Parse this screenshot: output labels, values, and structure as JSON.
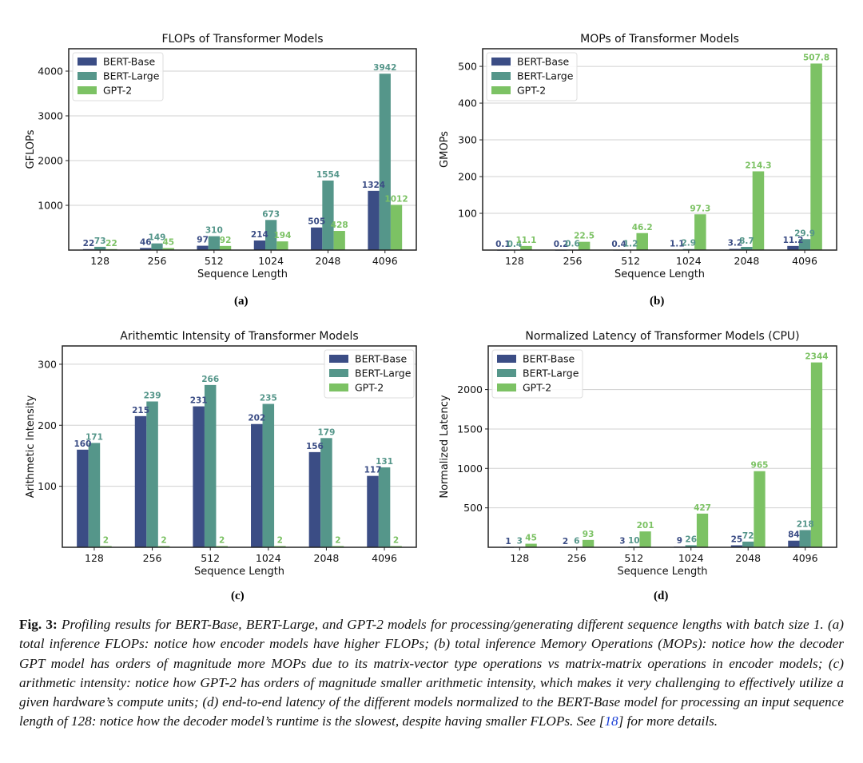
{
  "colors": {
    "BERT-Base": "#3b4d85",
    "BERT-Large": "#55968a",
    "GPT-2": "#7cc264",
    "grid": "#d0d0d0",
    "frame": "#222222"
  },
  "chart_data": [
    {
      "id": "a",
      "type": "bar",
      "title": "FLOPs of Transformer Models",
      "xlabel": "Sequence Length",
      "ylabel": "GFLOPs",
      "categories": [
        "128",
        "256",
        "512",
        "1024",
        "2048",
        "4096"
      ],
      "series": [
        {
          "name": "BERT-Base",
          "values": [
            22,
            46,
            97,
            214,
            505,
            1324
          ],
          "labels": [
            "22",
            "46",
            "97",
            "214",
            "505",
            "1324"
          ]
        },
        {
          "name": "BERT-Large",
          "values": [
            73,
            149,
            310,
            673,
            1554,
            3942
          ],
          "labels": [
            "73",
            "149",
            "310",
            "673",
            "1554",
            "3942"
          ]
        },
        {
          "name": "GPT-2",
          "values": [
            22,
            45,
            92,
            194,
            428,
            1012
          ],
          "labels": [
            "22",
            "45",
            "92",
            "194",
            "428",
            "1012"
          ]
        }
      ],
      "yticks": [
        1000,
        2000,
        3000,
        4000
      ],
      "ytick_labels": [
        "1000",
        "2000",
        "3000",
        "4000"
      ],
      "ylim": [
        0,
        4500
      ],
      "grid": true,
      "legend": "top-left",
      "sublabel": "(a)"
    },
    {
      "id": "b",
      "type": "bar",
      "title": "MOPs of Transformer Models",
      "xlabel": "Sequence Length",
      "ylabel": "GMOPs",
      "categories": [
        "128",
        "256",
        "512",
        "1024",
        "2048",
        "4096"
      ],
      "series": [
        {
          "name": "BERT-Base",
          "values": [
            0.1,
            0.2,
            0.4,
            1.1,
            3.2,
            11.2
          ],
          "labels": [
            "0.1",
            "0.2",
            "0.4",
            "1.1",
            "3.2",
            "11.2"
          ]
        },
        {
          "name": "BERT-Large",
          "values": [
            0.4,
            0.6,
            1.2,
            2.9,
            8.7,
            29.9
          ],
          "labels": [
            "0.4",
            "0.6",
            "1.2",
            "2.9",
            "8.7",
            "29.9"
          ]
        },
        {
          "name": "GPT-2",
          "values": [
            11.1,
            22.5,
            46.2,
            97.3,
            214.3,
            507.8
          ],
          "labels": [
            "11.1",
            "22.5",
            "46.2",
            "97.3",
            "214.3",
            "507.8"
          ]
        }
      ],
      "yticks": [
        100,
        200,
        300,
        400,
        500
      ],
      "ytick_labels": [
        "100",
        "200",
        "300",
        "400",
        "500"
      ],
      "ylim": [
        0,
        548
      ],
      "grid": true,
      "legend": "top-left",
      "sublabel": "(b)"
    },
    {
      "id": "c",
      "type": "bar",
      "title": "Arithemtic Intensity of Transformer Models",
      "xlabel": "Sequence Length",
      "ylabel": "Arithmetic Intensity",
      "categories": [
        "128",
        "256",
        "512",
        "1024",
        "2048",
        "4096"
      ],
      "series": [
        {
          "name": "BERT-Base",
          "values": [
            160,
            215,
            231,
            202,
            156,
            117
          ],
          "labels": [
            "160",
            "215",
            "231",
            "202",
            "156",
            "117"
          ]
        },
        {
          "name": "BERT-Large",
          "values": [
            171,
            239,
            266,
            235,
            179,
            131
          ],
          "labels": [
            "171",
            "239",
            "266",
            "235",
            "179",
            "131"
          ]
        },
        {
          "name": "GPT-2",
          "values": [
            2,
            2,
            2,
            2,
            2,
            2
          ],
          "labels": [
            "2",
            "2",
            "2",
            "2",
            "2",
            "2"
          ]
        }
      ],
      "yticks": [
        100,
        200,
        300
      ],
      "ytick_labels": [
        "100",
        "200",
        "300"
      ],
      "ylim": [
        0,
        330
      ],
      "grid": true,
      "legend": "top-right",
      "sublabel": "(c)"
    },
    {
      "id": "d",
      "type": "bar",
      "title": "Normalized Latency of Transformer Models (CPU)",
      "xlabel": "Sequence Length",
      "ylabel": "Normalized Latency",
      "categories": [
        "128",
        "256",
        "512",
        "1024",
        "2048",
        "4096"
      ],
      "series": [
        {
          "name": "BERT-Base",
          "values": [
            1,
            2,
            3,
            9,
            25,
            84
          ],
          "labels": [
            "1",
            "2",
            "3",
            "9",
            "25",
            "84"
          ]
        },
        {
          "name": "BERT-Large",
          "values": [
            3,
            6,
            10,
            26,
            72,
            218
          ],
          "labels": [
            "3",
            "6",
            "10",
            "26",
            "72",
            "218"
          ]
        },
        {
          "name": "GPT-2",
          "values": [
            45,
            93,
            201,
            427,
            965,
            2344
          ],
          "labels": [
            "45",
            "93",
            "201",
            "427",
            "965",
            "2344"
          ]
        }
      ],
      "yticks": [
        500,
        1000,
        1500,
        2000
      ],
      "ytick_labels": [
        "500",
        "1000",
        "1500",
        "2000"
      ],
      "ylim": [
        0,
        2553
      ],
      "grid": true,
      "legend": "top-left",
      "sublabel": "(d)"
    }
  ],
  "caption": {
    "label": "Fig. 3:",
    "text_before_ref": " Profiling results for BERT-Base, BERT-Large, and GPT-2 models for processing/generating different sequence lengths with batch size 1. (a) total inference FLOPs: notice how encoder models have higher FLOPs; (b) total inference Memory Operations (MOPs): notice how the decoder GPT model has orders of magnitude more MOPs due to its matrix-vector type operations vs matrix-matrix operations in encoder models; (c) arithmetic intensity: notice how GPT-2 has orders of magnitude smaller arithmetic intensity, which makes it very challenging to effectively utilize a given hardware’s compute units; (d) end-to-end latency of the different models normalized to the BERT-Base model for processing an input sequence length of 128: notice how the decoder model’s runtime is the slowest, despite having smaller FLOPs. See [",
    "ref": "18",
    "text_after_ref": "] for more details."
  }
}
